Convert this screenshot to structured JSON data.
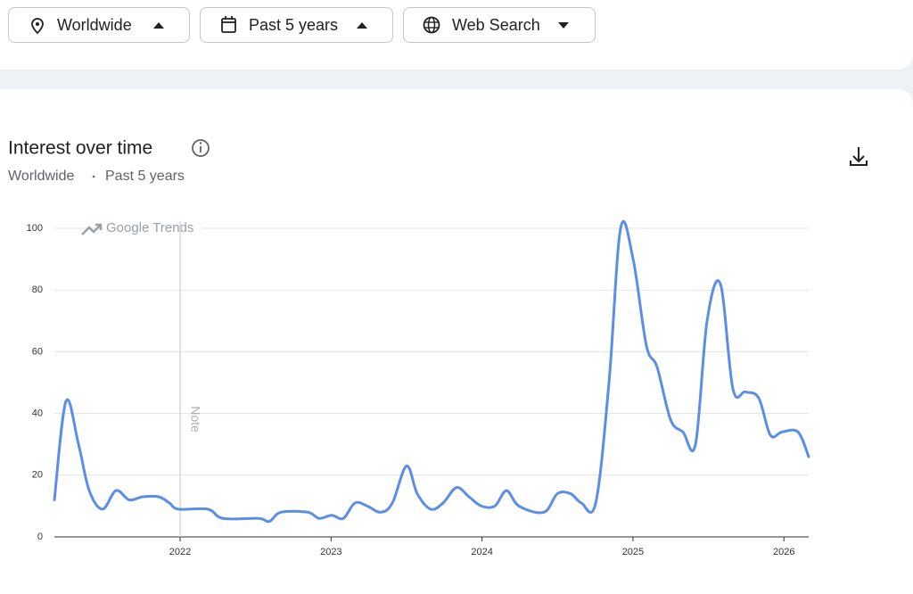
{
  "filters": {
    "region": "Worldwide",
    "period": "Past 5 years",
    "property": "Web Search"
  },
  "header": {
    "title": "Interest over time",
    "subtitle_region": "Worldwide",
    "subtitle_period": "Past 5 years"
  },
  "chart_data": {
    "type": "line",
    "watermark": "Google Trends",
    "x": [
      2021.167,
      2021.244,
      2021.327,
      2021.398,
      2021.486,
      2021.575,
      2021.663,
      2021.752,
      2021.858,
      2021.929,
      2021.988,
      2022.183,
      2022.284,
      2022.52,
      2022.591,
      2022.667,
      2022.845,
      2022.921,
      2023.004,
      2023.081,
      2023.158,
      2023.24,
      2023.329,
      2023.406,
      2023.5,
      2023.571,
      2023.66,
      2023.742,
      2023.831,
      2023.914,
      2023.996,
      2024.085,
      2024.162,
      2024.245,
      2024.41,
      2024.499,
      2024.587,
      2024.658,
      2024.753,
      2024.841,
      2024.918,
      2025.001,
      2025.089,
      2025.16,
      2025.249,
      2025.331,
      2025.414,
      2025.491,
      2025.579,
      2025.662,
      2025.745,
      2025.833,
      2025.91,
      2025.987,
      2026.093,
      2026.164
    ],
    "values": [
      12,
      44,
      30,
      15,
      9,
      15,
      12,
      13,
      13,
      11,
      9,
      9,
      6,
      6,
      5,
      8,
      8,
      6,
      7,
      6,
      11,
      10,
      8,
      11,
      23,
      14,
      9,
      11,
      16,
      13,
      10,
      10,
      15,
      10,
      8,
      14,
      14,
      11,
      11,
      50,
      100,
      90,
      62,
      55,
      38,
      34,
      30,
      70,
      82,
      48,
      47,
      45,
      33,
      34,
      34,
      26
    ],
    "color": "#5b8ee6",
    "xlim": [
      2021.167,
      2026.164
    ],
    "xticks": [
      2022,
      2023,
      2024,
      2025,
      2026
    ],
    "ylim": [
      0,
      100
    ],
    "yticks": [
      0,
      20,
      40,
      60,
      80,
      100
    ],
    "grid": true,
    "note": {
      "x": 2022,
      "label": "Note"
    }
  }
}
